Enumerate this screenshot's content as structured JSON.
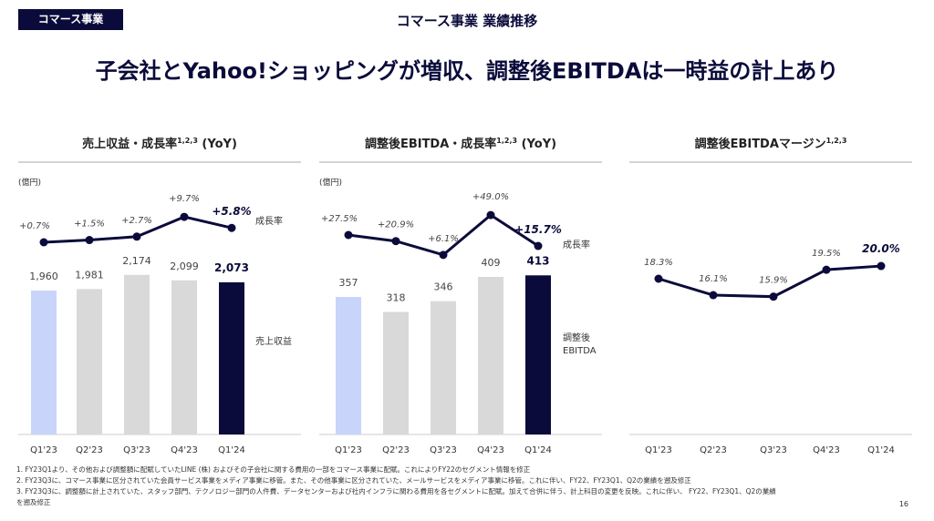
{
  "tag": "コマース事業",
  "section_title": "コマース事業 業績推移",
  "headline": "子会社とYahoo!ショッピングが増収、調整後EBITDAは一時益の計上あり",
  "colors": {
    "navy": "#0b0b3b",
    "gray": "#d9d9d9",
    "light_blue": "#c9d4fb"
  },
  "chart_data": [
    {
      "type": "bar+line",
      "title": "売上収益・成長率",
      "title_sup": "1,2,3",
      "title_suffix": "(YoY)",
      "unit": "(億円)",
      "categories": [
        "Q1'23",
        "Q2'23",
        "Q3'23",
        "Q4'23",
        "Q1'24"
      ],
      "series": [
        {
          "name": "売上収益",
          "type": "bar",
          "values": [
            1960,
            1981,
            2174,
            2099,
            2073
          ],
          "labels": [
            "1,960",
            "1,981",
            "2,174",
            "2,099",
            "2,073"
          ]
        },
        {
          "name": "成長率",
          "type": "line",
          "values": [
            0.7,
            1.5,
            2.7,
            9.7,
            5.8
          ],
          "labels": [
            "+0.7%",
            "+1.5%",
            "+2.7%",
            "+9.7%",
            "+5.8%"
          ]
        }
      ]
    },
    {
      "type": "bar+line",
      "title": "調整後EBITDA・成長率",
      "title_sup": "1,2,3",
      "title_suffix": "(YoY)",
      "unit": "(億円)",
      "categories": [
        "Q1'23",
        "Q2'23",
        "Q3'23",
        "Q4'23",
        "Q1'24"
      ],
      "series": [
        {
          "name": "調整後 EBITDA",
          "name_lines": [
            "調整後",
            "EBITDA"
          ],
          "type": "bar",
          "values": [
            357,
            318,
            346,
            409,
            413
          ],
          "labels": [
            "357",
            "318",
            "346",
            "409",
            "413"
          ]
        },
        {
          "name": "成長率",
          "type": "line",
          "values": [
            27.5,
            20.9,
            6.1,
            49.0,
            15.7
          ],
          "labels": [
            "+27.5%",
            "+20.9%",
            "+6.1%",
            "+49.0%",
            "+15.7%"
          ]
        }
      ]
    },
    {
      "type": "line",
      "title": "調整後EBITDAマージン",
      "title_sup": "1,2,3",
      "title_suffix": "",
      "categories": [
        "Q1'23",
        "Q2'23",
        "Q3'23",
        "Q4'23",
        "Q1'24"
      ],
      "series": [
        {
          "type": "line",
          "values": [
            18.3,
            16.1,
            15.9,
            19.5,
            20.0
          ],
          "labels": [
            "18.3%",
            "16.1%",
            "15.9%",
            "19.5%",
            "20.0%"
          ]
        }
      ]
    }
  ],
  "footnotes": [
    "1.  FY23Q1より、その他および調整額に配賦していたLINE (株) およびその子会社に関する費用の一部をコマース事業に配賦。これによりFY22のセグメント情報を修正",
    "2.  FY23Q3に、コマース事業に区分されていた会員サービス事業をメディア事業に移管。また、その他事業に区分されていた、メールサービスをメディア事業に移管。これに伴い、FY22、FY23Q1、Q2の業績を遡及修正",
    "3.  FY23Q3に、調整額に計上されていた、スタッフ部門、テクノロジー部門の人件費、データセンターおよび社内インフラに関わる費用を各セグメントに配賦。加えて合併に伴う、計上科目の変更を反映。これに伴い、 FY22、FY23Q1、Q2の業績",
    "     を遡及修正"
  ],
  "page_number": "16"
}
